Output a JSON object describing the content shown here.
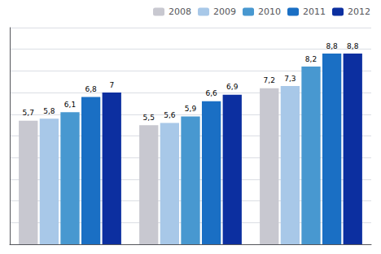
{
  "chart_data": {
    "type": "bar",
    "categories": [
      null,
      null,
      null
    ],
    "series": [
      {
        "name": "2008",
        "color": "#c8c8d0",
        "values": [
          5.7,
          5.5,
          7.2
        ],
        "value_labels": [
          "5,7",
          "5,5",
          "7,2"
        ]
      },
      {
        "name": "2009",
        "color": "#a8c8e8",
        "values": [
          5.8,
          5.6,
          7.3
        ],
        "value_labels": [
          "5,8",
          "5,6",
          "7,3"
        ]
      },
      {
        "name": "2010",
        "color": "#4898d0",
        "values": [
          6.1,
          5.9,
          8.2
        ],
        "value_labels": [
          "6,1",
          "5,9",
          "8,2"
        ]
      },
      {
        "name": "2011",
        "color": "#1a6fc4",
        "values": [
          6.8,
          6.6,
          8.8
        ],
        "value_labels": [
          "6,8",
          "6,6",
          "8,8"
        ]
      },
      {
        "name": "2012",
        "color": "#0c2fa0",
        "values": [
          7.0,
          6.9,
          8.8
        ],
        "value_labels": [
          "7",
          "6,9",
          "8,8"
        ]
      }
    ],
    "ylim": [
      0,
      10
    ],
    "yticks": [
      0,
      1,
      2,
      3,
      4,
      5,
      6,
      7,
      8,
      9,
      10
    ],
    "grid": true,
    "legend": "upper right",
    "data_labels": true,
    "tick_labels": false
  }
}
